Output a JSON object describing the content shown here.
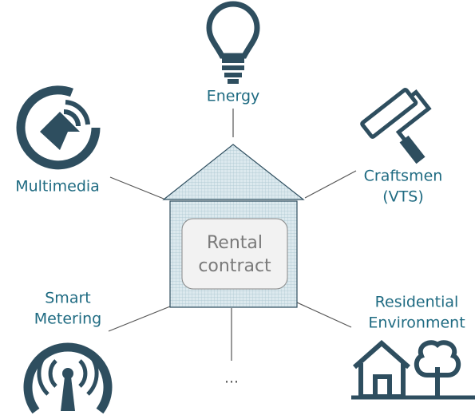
{
  "center": {
    "lines": [
      "Rental",
      "contract"
    ]
  },
  "nodes": [
    {
      "lines": [
        "Energy"
      ]
    },
    {
      "lines": [
        "Multimedia"
      ]
    },
    {
      "lines": [
        "Craftsmen",
        "(VTS)"
      ]
    },
    {
      "lines": [
        "Smart",
        "Metering"
      ]
    },
    {
      "lines": [
        "Residential",
        "Environment"
      ]
    },
    {
      "lines": [
        "..."
      ]
    }
  ]
}
